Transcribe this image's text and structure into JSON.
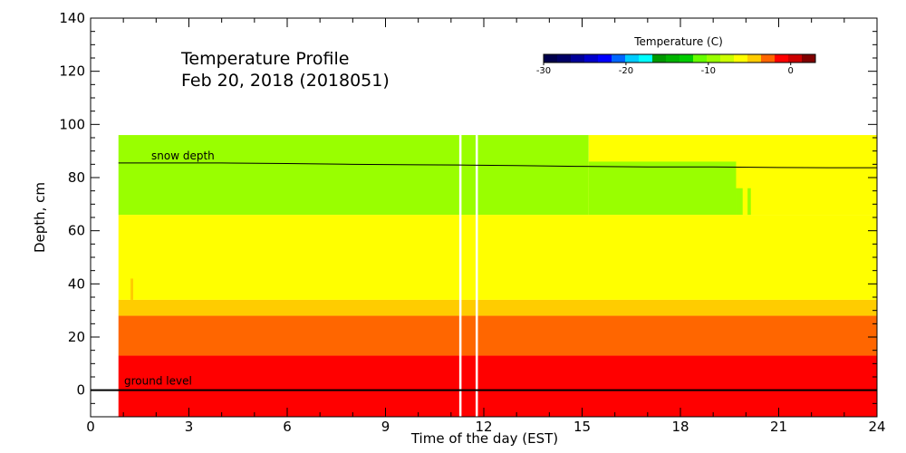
{
  "chart_data": {
    "type": "heatmap",
    "title_line1": "Temperature Profile",
    "title_line2": "Feb 20, 2018 (2018051)",
    "xlabel": "Time of the day (EST)",
    "ylabel": "Depth, cm",
    "xlim": [
      0,
      24
    ],
    "ylim": [
      -10,
      140
    ],
    "x_ticks": [
      "0",
      "3",
      "6",
      "9",
      "12",
      "15",
      "18",
      "21",
      "24"
    ],
    "y_ticks": [
      "0",
      "20",
      "40",
      "60",
      "80",
      "100",
      "120",
      "140"
    ],
    "x_tick_values": [
      0,
      3,
      6,
      9,
      12,
      15,
      18,
      21,
      24
    ],
    "y_tick_values": [
      0,
      20,
      40,
      60,
      80,
      100,
      120,
      140
    ],
    "colorbar": {
      "title": "Temperature (C)",
      "range": [
        -30,
        3
      ],
      "tick_labels": [
        "-30",
        "-20",
        "-10",
        "0"
      ],
      "tick_values": [
        -30,
        -20,
        -10,
        0
      ],
      "colors": [
        "#00004c",
        "#000066",
        "#000099",
        "#0000cc",
        "#0000ff",
        "#0066ff",
        "#00ccff",
        "#00ffff",
        "#009900",
        "#00b300",
        "#00cc00",
        "#66ff00",
        "#99ff00",
        "#ccff00",
        "#ffff00",
        "#ffcc00",
        "#ff6600",
        "#ff0000",
        "#cc0000",
        "#800000"
      ]
    },
    "cells": [
      {
        "x0": 0.85,
        "x1": 24,
        "y0": -10,
        "y1": 13,
        "color": "#ff0000"
      },
      {
        "x0": 0.85,
        "x1": 24,
        "y0": 13,
        "y1": 28,
        "color": "#ff6600"
      },
      {
        "x0": 0.85,
        "x1": 24,
        "y0": 28,
        "y1": 34,
        "color": "#ffcc00"
      },
      {
        "x0": 0.85,
        "x1": 24,
        "y0": 34,
        "y1": 66,
        "color": "#ffff00"
      },
      {
        "x0": 0.85,
        "x1": 15.2,
        "y0": 66,
        "y1": 96,
        "color": "#99ff00"
      },
      {
        "x0": 15.2,
        "x1": 24,
        "y0": 66,
        "y1": 96,
        "color": "#ffff00"
      },
      {
        "x0": 15.2,
        "x1": 19.7,
        "y0": 66,
        "y1": 86,
        "color": "#99ff00"
      },
      {
        "x0": 19.7,
        "x1": 19.9,
        "y0": 66,
        "y1": 76,
        "color": "#99ff00"
      },
      {
        "x0": 20.05,
        "x1": 20.15,
        "y0": 66,
        "y1": 76,
        "color": "#99ff00"
      },
      {
        "x0": 1.22,
        "x1": 1.3,
        "y0": 34,
        "y1": 42,
        "color": "#ffcc00"
      },
      {
        "x0": 11.25,
        "x1": 11.32,
        "y0": -10,
        "y1": 96,
        "color": "#ffffff"
      },
      {
        "x0": 11.75,
        "x1": 11.82,
        "y0": -10,
        "y1": 96,
        "color": "#ffffff"
      }
    ],
    "snow_depth": {
      "label": "snow depth",
      "x": [
        0.85,
        2,
        4,
        6,
        8,
        10,
        11.5,
        13,
        15,
        17,
        19,
        21,
        22.5,
        24
      ],
      "y": [
        85.5,
        85.5,
        85.5,
        85.3,
        85.0,
        84.8,
        84.7,
        84.5,
        84.2,
        84.0,
        84.0,
        83.8,
        83.7,
        83.7
      ]
    },
    "ground_level": {
      "label": "ground level",
      "y": 0
    }
  }
}
